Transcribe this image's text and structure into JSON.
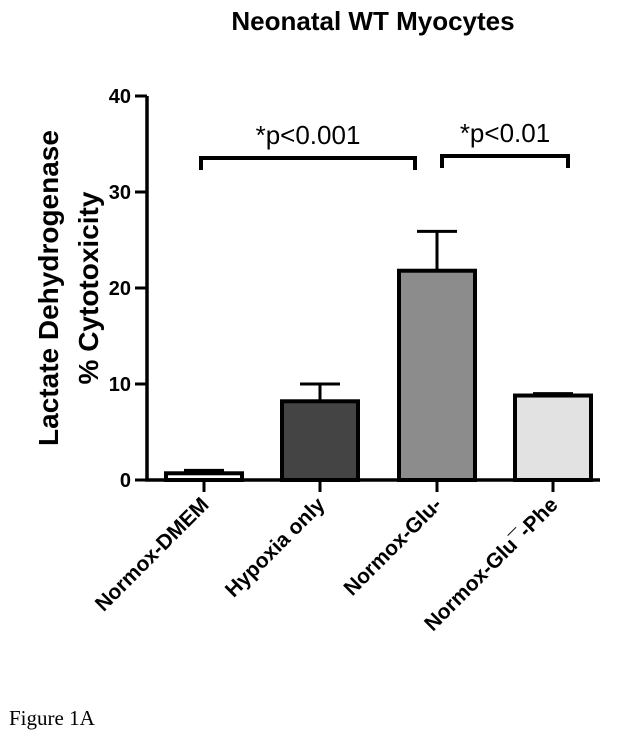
{
  "chart_data": {
    "type": "bar",
    "title": "Neonatal WT Myocytes",
    "ylabel_lines": [
      "Lactate  Dehydrogenase",
      "%  Cytotoxicity"
    ],
    "xlabel": "",
    "categories": [
      "Normox-DMEM",
      "Hypoxia only",
      "Normox-Glu-",
      "Normox-Glu¯-Phe"
    ],
    "values": [
      0.7,
      8.2,
      21.8,
      8.8
    ],
    "errors": [
      0.3,
      1.8,
      4.1,
      0.2
    ],
    "bar_colors": [
      "#ffffff",
      "#444444",
      "#8c8c8c",
      "#e2e2e2"
    ],
    "ylim": [
      0,
      40
    ],
    "yticks": [
      0,
      10,
      20,
      30,
      40
    ],
    "grid": false,
    "annotations": [
      {
        "text": "*p<0.001",
        "from": 0,
        "to": 2
      },
      {
        "text": "*p<0.01",
        "from": 2,
        "to": 3
      }
    ]
  },
  "caption": "Figure 1A"
}
